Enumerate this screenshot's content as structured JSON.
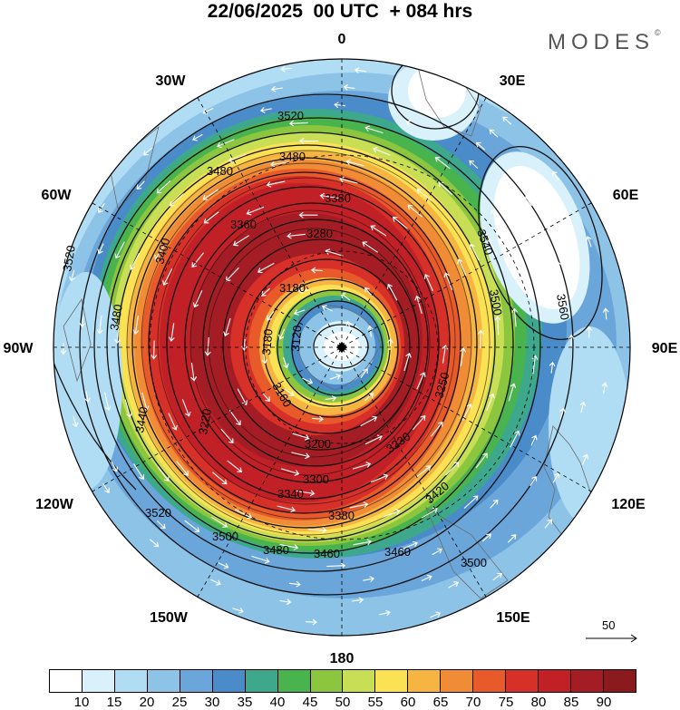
{
  "title": "22/06/2025  00 UTC  + 084 hrs",
  "brand": {
    "name": "MODES",
    "mark": "©"
  },
  "longitude_labels": {
    "top": "0",
    "top_right": "30E",
    "right_upper": "60E",
    "right": "90E",
    "right_lower": "120E",
    "bottom_right": "150E",
    "bottom": "180",
    "bottom_left": "150W",
    "left_lower": "120W",
    "left": "90W",
    "left_upper": "60W",
    "top_left": "30W"
  },
  "contour_labels": [
    "3520",
    "3480",
    "3480",
    "3380",
    "3360",
    "3280",
    "3540",
    "3500",
    "3560",
    "3520",
    "3480",
    "3400",
    "3180",
    "3120",
    "3180",
    "3160",
    "3200",
    "3300",
    "3340",
    "3380",
    "3460",
    "3460",
    "3480",
    "3500",
    "3520",
    "3500",
    "3420",
    "3230",
    "3250",
    "3440",
    "3220"
  ],
  "wind_speed_levels": [
    "10",
    "15",
    "20",
    "25",
    "30",
    "35",
    "40",
    "45",
    "50",
    "55",
    "60",
    "65",
    "70",
    "75",
    "80",
    "85",
    "90"
  ],
  "colorbar_colors": [
    "#ffffff",
    "#d8f1fb",
    "#b0ddf3",
    "#8ec3e8",
    "#6ba6da",
    "#4a8bc9",
    "#3ea88d",
    "#49b34e",
    "#8cc63f",
    "#c8df55",
    "#fbe154",
    "#f6b443",
    "#f08b36",
    "#e95a2b",
    "#d73028",
    "#c12027",
    "#a51d24",
    "#8a1a1e"
  ],
  "vector_scale": {
    "label": "50"
  }
}
